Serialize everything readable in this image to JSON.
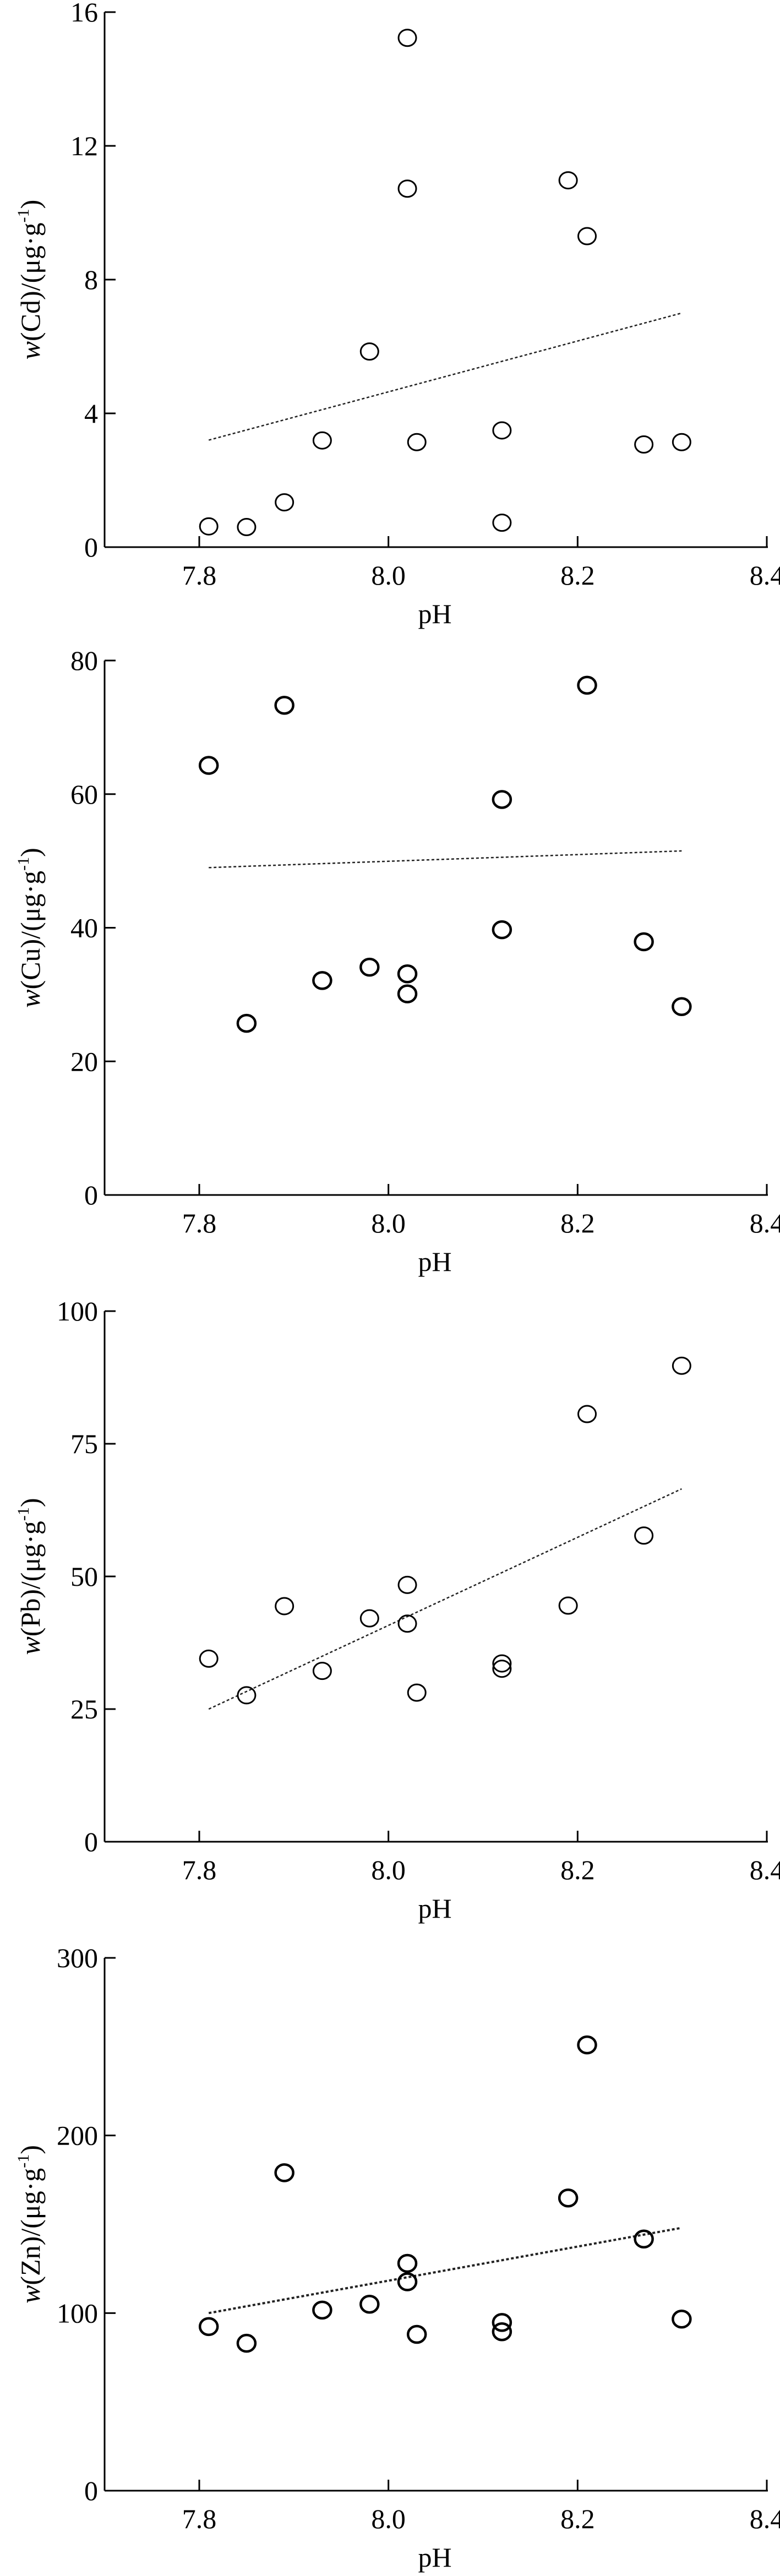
{
  "chart_data": [
    {
      "type": "scatter",
      "id": "cd",
      "xlabel": "pH",
      "ylabel_italic": "w",
      "ylabel_rest": "(Cd)/(μg·g",
      "ylabel_sup": "-1",
      "ylabel_close": ")",
      "xlim": [
        7.7,
        8.4
      ],
      "ylim": [
        0,
        16
      ],
      "xticks": [
        "7.8",
        "8.0",
        "8.2",
        "8.4"
      ],
      "xtick_values": [
        7.8,
        8.0,
        8.2,
        8.4
      ],
      "yticks": [
        "0",
        "4",
        "8",
        "12",
        "16"
      ],
      "ytick_values": [
        0,
        4,
        8,
        12,
        16
      ],
      "points": [
        [
          7.81,
          0.62
        ],
        [
          7.85,
          0.6
        ],
        [
          7.89,
          1.34
        ],
        [
          7.93,
          3.19
        ],
        [
          7.98,
          5.85
        ],
        [
          8.02,
          15.23
        ],
        [
          8.02,
          10.72
        ],
        [
          8.03,
          3.14
        ],
        [
          8.12,
          3.49
        ],
        [
          8.12,
          0.73
        ],
        [
          8.19,
          10.97
        ],
        [
          8.21,
          9.3
        ],
        [
          8.27,
          3.07
        ],
        [
          8.31,
          3.14
        ]
      ],
      "trendline": [
        [
          7.81,
          3.2
        ],
        [
          8.31,
          7.0
        ]
      ]
    },
    {
      "type": "scatter",
      "id": "cu",
      "xlabel": "pH",
      "ylabel_italic": "w",
      "ylabel_rest": "(Cu)/(μg·g",
      "ylabel_sup": "-1",
      "ylabel_close": ")",
      "xlim": [
        7.7,
        8.4
      ],
      "ylim": [
        0,
        80
      ],
      "xticks": [
        "7.8",
        "8.0",
        "8.2",
        "8.4"
      ],
      "xtick_values": [
        7.8,
        8.0,
        8.2,
        8.4
      ],
      "yticks": [
        "0",
        "20",
        "40",
        "60",
        "80"
      ],
      "ytick_values": [
        0,
        20,
        40,
        60,
        80
      ],
      "points": [
        [
          7.81,
          64.3
        ],
        [
          7.85,
          25.7
        ],
        [
          7.89,
          73.3
        ],
        [
          7.93,
          32.1
        ],
        [
          7.98,
          34.1
        ],
        [
          8.02,
          33.1
        ],
        [
          8.02,
          30.1
        ],
        [
          8.12,
          59.2
        ],
        [
          8.12,
          39.7
        ],
        [
          8.21,
          76.3
        ],
        [
          8.27,
          37.9
        ],
        [
          8.31,
          28.2
        ]
      ],
      "trendline": [
        [
          7.81,
          49.0
        ],
        [
          8.31,
          51.5
        ]
      ]
    },
    {
      "type": "scatter",
      "id": "pb",
      "xlabel": "pH",
      "ylabel_italic": "w",
      "ylabel_rest": "(Pb)/(μg·g",
      "ylabel_sup": "-1",
      "ylabel_close": ")",
      "xlim": [
        7.7,
        8.4
      ],
      "ylim": [
        0,
        100
      ],
      "xticks": [
        "7.8",
        "8.0",
        "8.2",
        "8.4"
      ],
      "xtick_values": [
        7.8,
        8.0,
        8.2,
        8.4
      ],
      "yticks": [
        "0",
        "25",
        "50",
        "75",
        "100"
      ],
      "ytick_values": [
        0,
        25,
        50,
        75,
        100
      ],
      "points": [
        [
          7.81,
          34.5
        ],
        [
          7.85,
          27.6
        ],
        [
          7.89,
          44.4
        ],
        [
          7.93,
          32.2
        ],
        [
          7.98,
          42.1
        ],
        [
          8.02,
          48.4
        ],
        [
          8.02,
          41.1
        ],
        [
          8.03,
          28.1
        ],
        [
          8.12,
          33.6
        ],
        [
          8.12,
          32.6
        ],
        [
          8.19,
          44.5
        ],
        [
          8.21,
          80.6
        ],
        [
          8.27,
          57.7
        ],
        [
          8.31,
          89.7
        ]
      ],
      "trendline": [
        [
          7.81,
          25.0
        ],
        [
          8.31,
          66.5
        ]
      ]
    },
    {
      "type": "scatter",
      "id": "zn",
      "xlabel": "pH",
      "ylabel_italic": "w",
      "ylabel_rest": "(Zn)/(μg·g",
      "ylabel_sup": "-1",
      "ylabel_close": ")",
      "xlim": [
        7.7,
        8.4
      ],
      "ylim": [
        0,
        300
      ],
      "xticks": [
        "7.8",
        "8.0",
        "8.2",
        "8.4"
      ],
      "xtick_values": [
        7.8,
        8.0,
        8.2,
        8.4
      ],
      "yticks": [
        "0",
        "100",
        "200",
        "300"
      ],
      "ytick_values": [
        0,
        100,
        200,
        300
      ],
      "points": [
        [
          7.81,
          92.4
        ],
        [
          7.85,
          83
        ],
        [
          7.89,
          179
        ],
        [
          7.93,
          101.7
        ],
        [
          7.98,
          105
        ],
        [
          8.02,
          128
        ],
        [
          8.02,
          117.6
        ],
        [
          8.03,
          88
        ],
        [
          8.12,
          94.7
        ],
        [
          8.12,
          89.5
        ],
        [
          8.19,
          164.8
        ],
        [
          8.21,
          251
        ],
        [
          8.27,
          141.7
        ],
        [
          8.31,
          96.6
        ]
      ],
      "trendline": [
        [
          7.81,
          100
        ],
        [
          8.31,
          148
        ]
      ]
    }
  ]
}
